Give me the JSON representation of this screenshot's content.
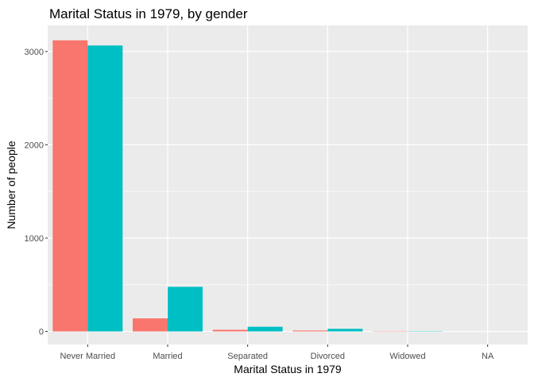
{
  "chart_data": {
    "type": "bar",
    "title": "Marital Status in 1979, by gender",
    "xlabel": "Marital Status in 1979",
    "ylabel": "Number of people",
    "categories": [
      "Never Married",
      "Married",
      "Separated",
      "Divorced",
      "Widowed",
      "NA"
    ],
    "series": [
      {
        "color": "#F8766D",
        "values": [
          3120,
          140,
          18,
          10,
          3,
          0
        ]
      },
      {
        "color": "#00BFC4",
        "values": [
          3065,
          478,
          50,
          28,
          3,
          0
        ]
      }
    ],
    "ylim": [
      -140,
      3280
    ],
    "yticks": [
      0,
      1000,
      2000,
      3000
    ],
    "ytick_labels": [
      "0",
      "1000",
      "2000",
      "3000"
    ],
    "grid": true,
    "legend": "none",
    "panel_color": "#EBEBEB",
    "grid_color": "#FFFFFF"
  }
}
